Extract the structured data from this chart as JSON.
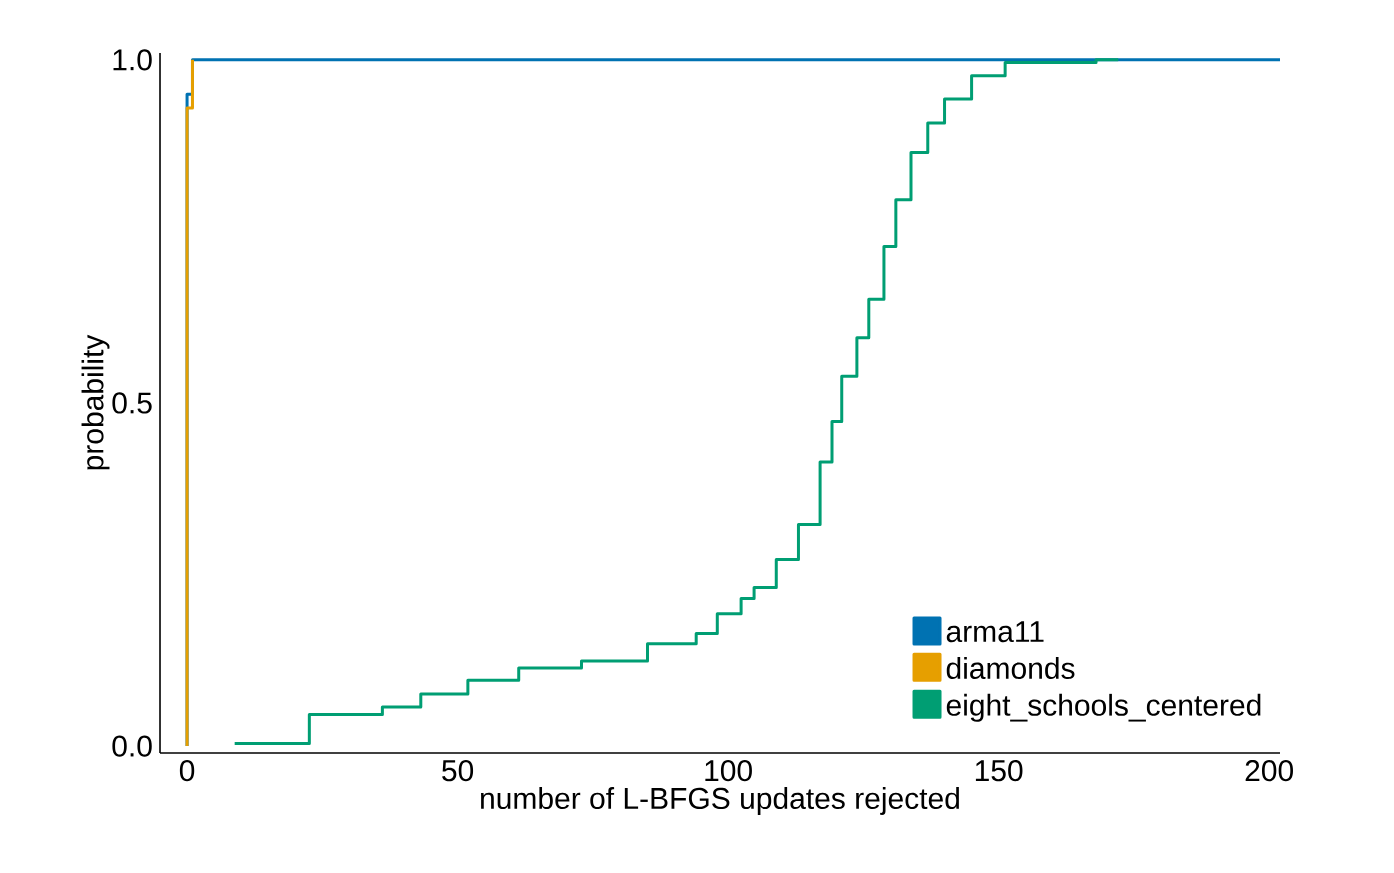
{
  "chart_data": {
    "type": "step",
    "xlabel": "number of L-BFGS updates rejected",
    "ylabel": "probability",
    "xlim": [
      -5,
      202
    ],
    "ylim": [
      -0.01,
      1.01
    ],
    "xticks": [
      0,
      50,
      100,
      150,
      200
    ],
    "yticks": [
      {
        "value": 0,
        "label": "0.0"
      },
      {
        "value": 0.5,
        "label": "0.5"
      },
      {
        "value": 1,
        "label": "1.0"
      }
    ],
    "legend": "bottom right",
    "grid": false,
    "series": [
      {
        "name": "arma11",
        "color": "#0072b2",
        "x": [
          0,
          0,
          1,
          202
        ],
        "values": [
          0,
          0.95,
          1,
          1
        ]
      },
      {
        "name": "diamonds",
        "color": "#e69f00",
        "x": [
          0,
          0,
          1
        ],
        "values": [
          0,
          0.93,
          1
        ]
      },
      {
        "name": "eight_schools_centered",
        "color": "#009e73",
        "x": [
          8.8,
          13.9,
          22.6,
          36.1,
          43.2,
          51.9,
          61.3,
          72.9,
          85.1,
          89.9,
          94.1,
          98,
          102.4,
          104.8,
          108.9,
          113,
          117,
          119.2,
          121,
          123.8,
          126,
          128.8,
          131,
          133.8,
          136.9,
          140,
          145,
          151.2,
          168,
          172.1
        ],
        "values": [
          0.004,
          0.004,
          0.046,
          0.057,
          0.076,
          0.096,
          0.114,
          0.124,
          0.149,
          0.149,
          0.164,
          0.193,
          0.215,
          0.231,
          0.272,
          0.323,
          0.414,
          0.473,
          0.539,
          0.595,
          0.651,
          0.728,
          0.796,
          0.865,
          0.908,
          0.943,
          0.977,
          0.996,
          1.0,
          1.0
        ]
      }
    ]
  }
}
